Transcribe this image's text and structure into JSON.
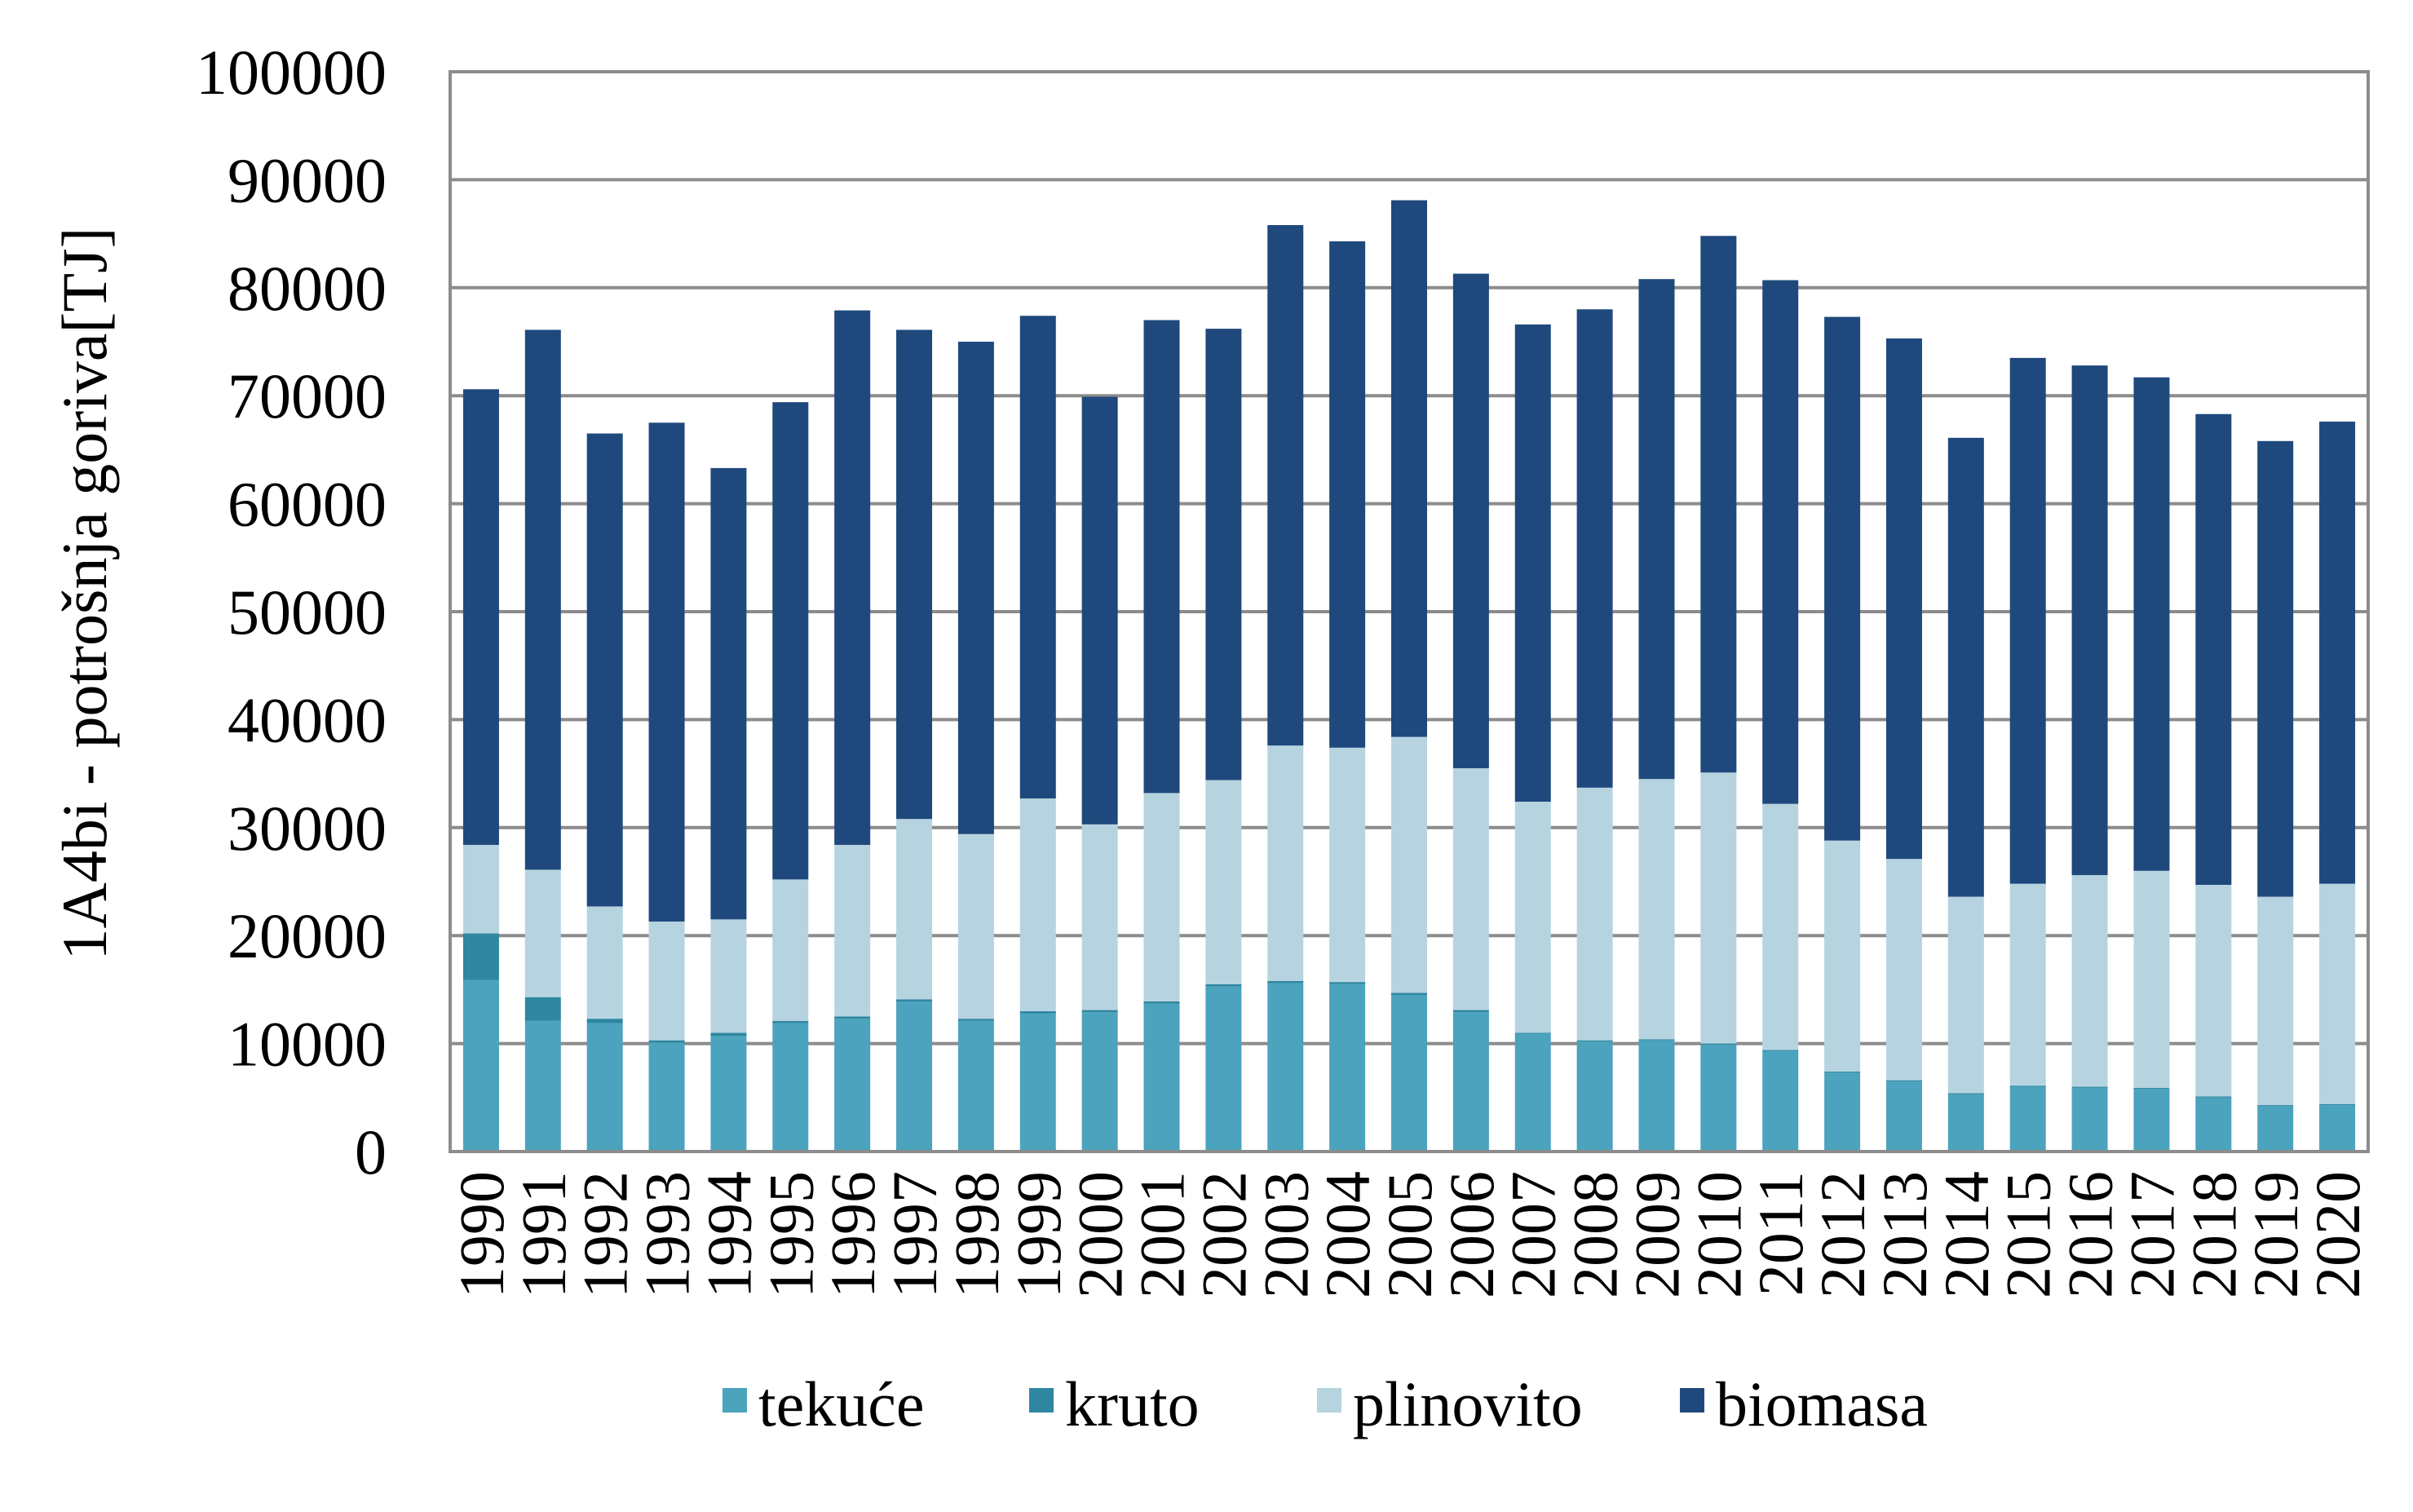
{
  "chart_data": {
    "type": "bar",
    "stacked": true,
    "ylabel": "1A4bi - potrošnja goriva[TJ]",
    "xlabel": "",
    "ylim": [
      0,
      100000
    ],
    "yticks": [
      "0",
      "10000",
      "20000",
      "30000",
      "40000",
      "50000",
      "60000",
      "70000",
      "80000",
      "90000",
      "100000"
    ],
    "grid": true,
    "legend_position": "bottom",
    "categories": [
      "1990",
      "1991",
      "1992",
      "1993",
      "1994",
      "1995",
      "1996",
      "1997",
      "1998",
      "1999",
      "2000",
      "2001",
      "2002",
      "2003",
      "2004",
      "2005",
      "2006",
      "2007",
      "2008",
      "2009",
      "2010",
      "2011",
      "2012",
      "2013",
      "2014",
      "2015",
      "2016",
      "2017",
      "2018",
      "2019",
      "2020"
    ],
    "series": [
      {
        "name": "tekuće",
        "color": "#4BA3BD",
        "values": [
          15900,
          12100,
          11900,
          10100,
          10700,
          11900,
          12300,
          13900,
          12100,
          12800,
          12900,
          13700,
          15300,
          15600,
          15500,
          14500,
          12900,
          10900,
          10200,
          10300,
          9900,
          9300,
          7300,
          6500,
          5300,
          6000,
          5900,
          5800,
          5000,
          4200,
          4300
        ]
      },
      {
        "name": "kruto",
        "color": "#2E86A0",
        "values": [
          4300,
          2200,
          400,
          200,
          300,
          200,
          200,
          200,
          200,
          200,
          200,
          200,
          200,
          200,
          200,
          200,
          200,
          100,
          100,
          100,
          100,
          100,
          100,
          100,
          100,
          100,
          100,
          100,
          100,
          100,
          100
        ]
      },
      {
        "name": "plinovito",
        "color": "#B6D4E0",
        "values": [
          8200,
          11800,
          10400,
          11000,
          10500,
          13100,
          15900,
          16700,
          17100,
          19700,
          17200,
          19300,
          18900,
          21800,
          21700,
          23700,
          22400,
          21400,
          23400,
          24100,
          25100,
          22800,
          21400,
          20500,
          18200,
          18700,
          19600,
          20100,
          19600,
          19300,
          20400
        ]
      },
      {
        "name": "biomasa",
        "color": "#1F497D",
        "values": [
          42200,
          50000,
          43800,
          46200,
          41800,
          44200,
          49500,
          45300,
          45600,
          44700,
          39600,
          43800,
          41800,
          48200,
          46900,
          49700,
          45800,
          44200,
          44300,
          46300,
          49700,
          48500,
          48500,
          48200,
          42500,
          48700,
          47200,
          45700,
          43600,
          42200,
          42800
        ]
      }
    ]
  }
}
